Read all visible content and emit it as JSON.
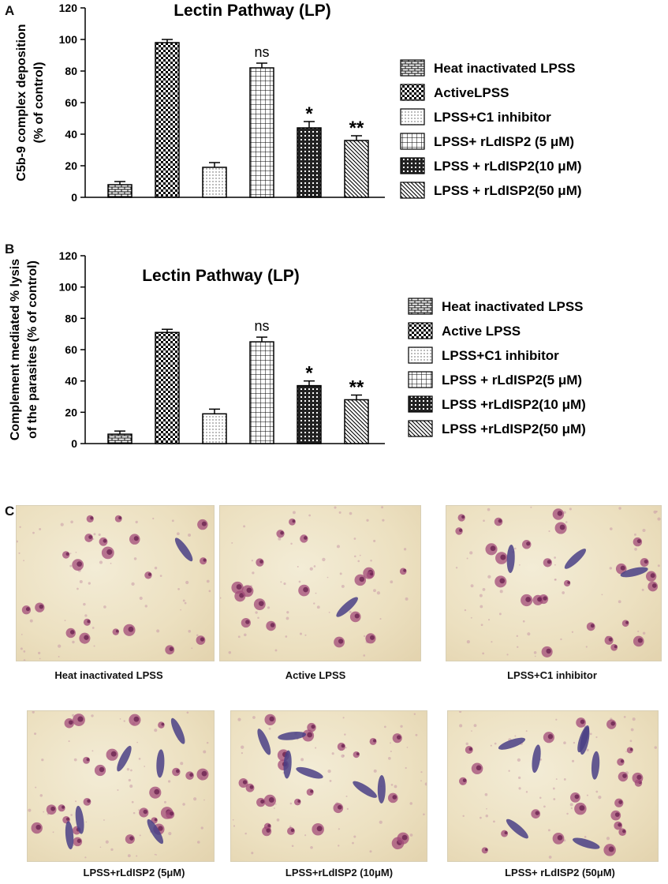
{
  "panels": {
    "a_letter": "A",
    "b_letter": "B",
    "c_letter": "C"
  },
  "chart_data": [
    {
      "type": "bar",
      "title": "Lectin Pathway (LP)",
      "ylabel_line1": "C5b-9 complex deposition",
      "ylabel_line2": "(% of control)",
      "ylim": [
        0,
        120
      ],
      "yticks": [
        0,
        20,
        40,
        60,
        80,
        100,
        120
      ],
      "categories": [
        "Heat inactivated LPSS",
        "ActiveLPSS",
        "LPSS+C1 inhibitor",
        "LPSS+ rLdISP2 (5 μM)",
        "LPSS + rLdISP2(10 μM)",
        "LPSS + rLdISP2(50 μM)"
      ],
      "values": [
        8,
        98,
        19,
        82,
        44,
        36
      ],
      "errors": [
        2,
        2,
        3,
        3,
        4,
        3
      ],
      "annotations": [
        "",
        "",
        "",
        "ns",
        "*",
        "**"
      ],
      "legend_position": "right",
      "patterns": [
        "brick",
        "checker",
        "dots",
        "grid",
        "darkgrid",
        "diag"
      ]
    },
    {
      "type": "bar",
      "title": "Lectin Pathway (LP)",
      "ylabel_line1": "Complement mediated % lysis",
      "ylabel_line2": "of the parasites (% of control)",
      "ylim": [
        0,
        120
      ],
      "yticks": [
        0,
        20,
        40,
        60,
        80,
        100,
        120
      ],
      "categories": [
        "Heat inactivated LPSS",
        "Active LPSS",
        "LPSS+C1 inhibitor",
        "LPSS + rLdISP2(5 μM)",
        "LPSS +rLdISP2(10 μM)",
        "LPSS +rLdISP2(50 μM)"
      ],
      "values": [
        6,
        71,
        19,
        65,
        37,
        28
      ],
      "errors": [
        2,
        2,
        3,
        3,
        3,
        3
      ],
      "annotations": [
        "",
        "",
        "",
        "ns",
        "*",
        "**"
      ],
      "legend_position": "right",
      "patterns": [
        "brick",
        "checker",
        "dots",
        "grid",
        "darkgrid",
        "diag"
      ]
    }
  ],
  "micrographs": {
    "captions": [
      "Heat inactivated LPSS",
      "Active LPSS",
      "LPSS+C1 inhibitor",
      "LPSS+rLdISP2 (5μM)",
      "LPSS+rLdISP2 (10μM)",
      "LPSS+ rLdISP2 (50μM)"
    ],
    "background_color": "#ede2c4",
    "cell_color": "#a24a78",
    "parasite_color": "#4a3f86"
  }
}
